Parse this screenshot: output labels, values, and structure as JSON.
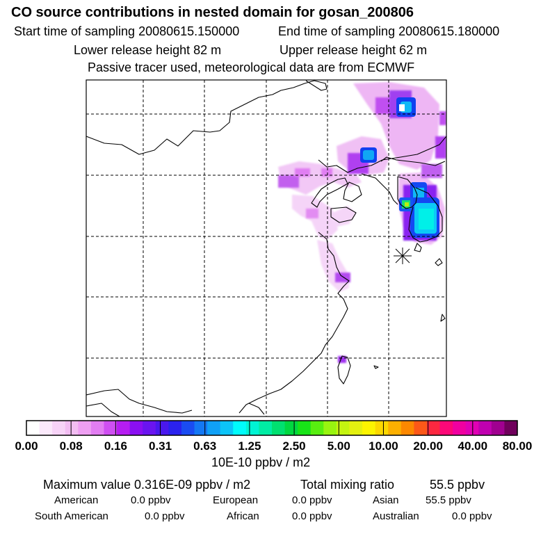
{
  "header": {
    "title": "CO  source contributions in nested domain for gosan_200806",
    "start_label": "Start time of sampling 20080615.150000",
    "end_label": "End time of sampling 20080615.180000",
    "lower_label": "Lower release height   82 m",
    "upper_label": "Upper release height   62 m",
    "tracer_note": "Passive tracer used, meteorological data are from ECMWF"
  },
  "colorbar": {
    "labels": [
      "0.00",
      "0.08",
      "0.16",
      "0.31",
      "0.63",
      "1.25",
      "2.50",
      "5.00",
      "10.00",
      "20.00",
      "40.00",
      "80.00"
    ],
    "unit": "10E-10 ppbv / m2",
    "colors": [
      "#ffffff",
      "#fbe9fb",
      "#f7d3f7",
      "#f2bdf2",
      "#ee9ff2",
      "#e27df2",
      "#cf4ff2",
      "#b61df2",
      "#8a0ff2",
      "#6a14f0",
      "#4a18ee",
      "#2a22ee",
      "#1a4cf2",
      "#1478f4",
      "#10a0f6",
      "#0cc4f8",
      "#00fcfc",
      "#00f4d4",
      "#00eca4",
      "#00e070",
      "#00d840",
      "#18e418",
      "#58ee10",
      "#98f410",
      "#c4f410",
      "#e4f010",
      "#fcf400",
      "#fcd800",
      "#fcb000",
      "#fc8800",
      "#fc5818",
      "#fc2840",
      "#fc0878",
      "#f000a0",
      "#e000b4",
      "#c000b0",
      "#a00090",
      "#70005c"
    ]
  },
  "stats": {
    "max_label": "Maximum value  0.316E-09 ppbv / m2",
    "total_label": "Total mixing ratio",
    "total_value": "55.5 ppbv",
    "american_label": "American",
    "american_value": "0.0 ppbv",
    "european_label": "European",
    "european_value": "0.0 ppbv",
    "asian_label": "Asian",
    "asian_value": "55.5 ppbv",
    "south_american_label": "South American",
    "south_american_value": "0.0 ppbv",
    "african_label": "African",
    "african_value": "0.0 ppbv",
    "australian_label": "Australian",
    "australian_value": "0.0 ppbv"
  }
}
